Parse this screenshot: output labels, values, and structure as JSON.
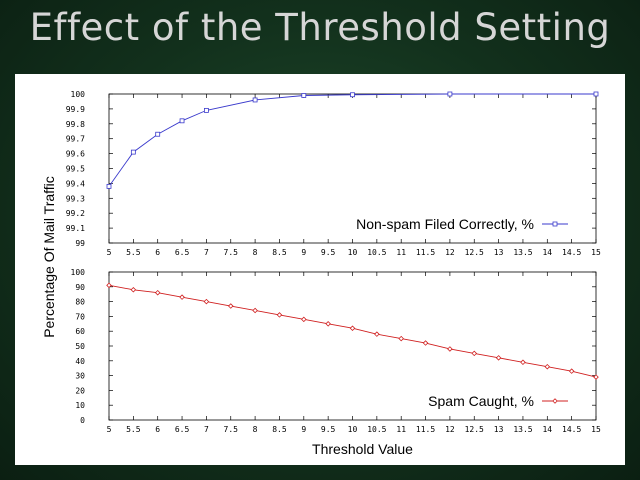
{
  "slide": {
    "title": "Effect of the Threshold Setting"
  },
  "chart_data": {
    "type": "line",
    "ylabel": "Percentage Of Mail Traffic",
    "xlabel": "Threshold Value",
    "x_tick_labels": [
      "5",
      "5.5",
      "6",
      "6.5",
      "7",
      "7.5",
      "8",
      "8.5",
      "9",
      "9.5",
      "10",
      "10.5",
      "11",
      "11.5",
      "12",
      "12.5",
      "13",
      "13.5",
      "14",
      "14.5",
      "15"
    ],
    "grid": false,
    "panels": [
      {
        "type": "line",
        "ylim": [
          99,
          100
        ],
        "y_tick_labels": [
          "99",
          "99.1",
          "99.2",
          "99.3",
          "99.4",
          "99.5",
          "99.6",
          "99.7",
          "99.8",
          "99.9",
          "100"
        ],
        "legend_position": "bottom-right",
        "series": [
          {
            "name": "Non-spam Filed Correctly, %",
            "color": "#3a3acc",
            "marker": "square",
            "x": [
              5,
              5.5,
              6,
              6.5,
              7,
              8,
              9,
              10,
              12,
              15
            ],
            "values": [
              99.38,
              99.61,
              99.73,
              99.82,
              99.89,
              99.96,
              99.99,
              99.995,
              100,
              100
            ]
          }
        ]
      },
      {
        "type": "line",
        "ylim": [
          0,
          100
        ],
        "y_tick_labels": [
          "0",
          "10",
          "20",
          "30",
          "40",
          "50",
          "60",
          "70",
          "80",
          "90",
          "100"
        ],
        "legend_position": "bottom-right",
        "series": [
          {
            "name": "Spam Caught, %",
            "color": "#d02020",
            "marker": "diamond",
            "x": [
              5,
              5.5,
              6,
              6.5,
              7,
              7.5,
              8,
              8.5,
              9,
              9.5,
              10,
              10.5,
              11,
              11.5,
              12,
              12.5,
              13,
              13.5,
              14,
              14.5,
              15
            ],
            "values": [
              91,
              88,
              86,
              83,
              80,
              77,
              74,
              71,
              68,
              65,
              62,
              58,
              55,
              52,
              48,
              45,
              42,
              39,
              36,
              33,
              29
            ]
          }
        ]
      }
    ]
  }
}
